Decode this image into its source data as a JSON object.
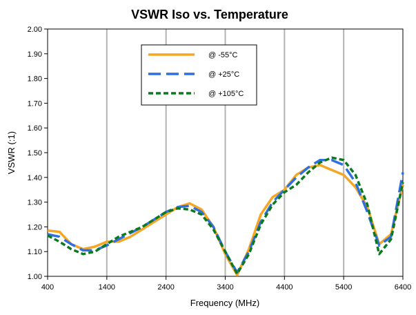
{
  "chart_data": {
    "type": "line",
    "title": "VSWR Iso vs. Temperature",
    "xlabel": "Frequency (MHz)",
    "ylabel": "VSWR (:1)",
    "xlim": [
      400,
      6400
    ],
    "ylim": [
      1.0,
      2.0
    ],
    "x_ticks": [
      400,
      1400,
      2400,
      3400,
      4400,
      5400,
      6400
    ],
    "x_tick_labels": [
      "400",
      "1400",
      "2400",
      "3400",
      "4400",
      "5400",
      "6400"
    ],
    "y_ticks": [
      1.0,
      1.1,
      1.2,
      1.3,
      1.4,
      1.5,
      1.6,
      1.7,
      1.8,
      1.9,
      2.0
    ],
    "y_tick_labels": [
      "1.00",
      "1.10",
      "1.20",
      "1.30",
      "1.40",
      "1.50",
      "1.60",
      "1.70",
      "1.80",
      "1.90",
      "2.00"
    ],
    "grid": "vertical",
    "legend_position": "top-center",
    "series": [
      {
        "name": "@ -55°C",
        "color": "#f5a623",
        "dash": "solid",
        "x": [
          400,
          600,
          800,
          1000,
          1200,
          1400,
          1600,
          1800,
          2000,
          2200,
          2400,
          2600,
          2800,
          3000,
          3200,
          3400,
          3600,
          3800,
          4000,
          4200,
          4400,
          4600,
          4800,
          5000,
          5200,
          5400,
          5600,
          5800,
          6000,
          6200,
          6400
        ],
        "y": [
          1.185,
          1.18,
          1.13,
          1.11,
          1.12,
          1.14,
          1.14,
          1.16,
          1.19,
          1.22,
          1.25,
          1.28,
          1.295,
          1.27,
          1.2,
          1.09,
          1.005,
          1.11,
          1.25,
          1.32,
          1.35,
          1.41,
          1.44,
          1.45,
          1.43,
          1.41,
          1.36,
          1.28,
          1.13,
          1.17,
          1.37
        ]
      },
      {
        "name": "@ +25°C",
        "color": "#2f6fe0",
        "dash": "long-dash",
        "x": [
          400,
          600,
          800,
          1000,
          1200,
          1400,
          1600,
          1800,
          2000,
          2200,
          2400,
          2600,
          2800,
          3000,
          3200,
          3400,
          3600,
          3800,
          4000,
          4200,
          4400,
          4600,
          4800,
          5000,
          5200,
          5400,
          5600,
          5800,
          6000,
          6200,
          6400
        ],
        "y": [
          1.17,
          1.16,
          1.13,
          1.105,
          1.105,
          1.125,
          1.15,
          1.175,
          1.2,
          1.23,
          1.26,
          1.28,
          1.285,
          1.26,
          1.2,
          1.1,
          1.015,
          1.1,
          1.22,
          1.3,
          1.35,
          1.4,
          1.44,
          1.47,
          1.47,
          1.45,
          1.38,
          1.26,
          1.125,
          1.16,
          1.42
        ]
      },
      {
        "name": "@ +105°C",
        "color": "#0b7a1e",
        "dash": "short-dash",
        "x": [
          400,
          600,
          800,
          1000,
          1200,
          1400,
          1600,
          1800,
          2000,
          2200,
          2400,
          2600,
          2800,
          3000,
          3200,
          3400,
          3600,
          3800,
          4000,
          4200,
          4400,
          4600,
          4800,
          5000,
          5200,
          5400,
          5600,
          5800,
          6000,
          6200,
          6400
        ],
        "y": [
          1.165,
          1.14,
          1.11,
          1.09,
          1.1,
          1.13,
          1.16,
          1.18,
          1.2,
          1.23,
          1.26,
          1.275,
          1.27,
          1.25,
          1.19,
          1.1,
          1.01,
          1.09,
          1.21,
          1.29,
          1.34,
          1.37,
          1.42,
          1.46,
          1.48,
          1.47,
          1.41,
          1.29,
          1.09,
          1.15,
          1.38
        ]
      }
    ]
  }
}
